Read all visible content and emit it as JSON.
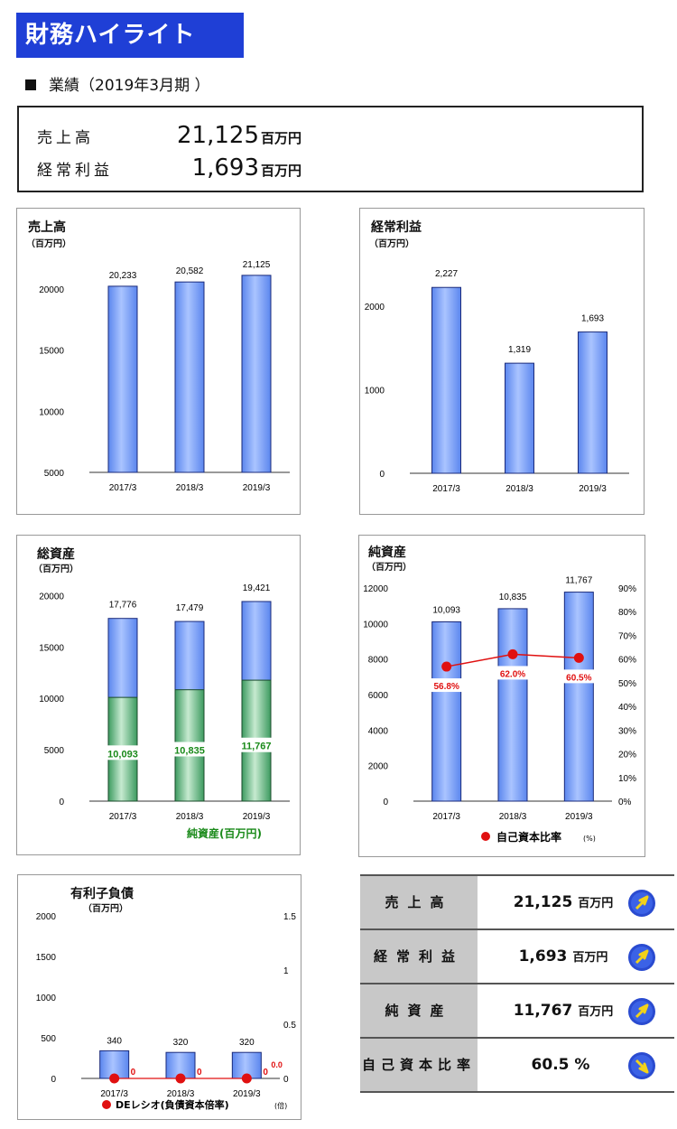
{
  "header": {
    "title": "財務ハイライト",
    "subtitle": "業績（2019年3月期 ）"
  },
  "summary": {
    "sales_label": "売上高",
    "sales_value": "21,125",
    "ordinary_label": "経常利益",
    "ordinary_value": "1,693",
    "unit": "百万円"
  },
  "colors": {
    "banner": "#1f3fd6",
    "bar_blue": "#5b86ee",
    "bar_green": "#3c9a5f",
    "ratio_marker": "#e01010",
    "label_green": "#1a8a1a",
    "label_red": "#e01010"
  },
  "chart_data": [
    {
      "id": "sales",
      "type": "bar",
      "title": "売上高",
      "unit": "（百万円）",
      "categories": [
        "2017/3",
        "2018/3",
        "2019/3"
      ],
      "values": [
        20233,
        20582,
        21125
      ],
      "value_labels": [
        "20,233",
        "20,582",
        "21,125"
      ],
      "ylim": [
        5000,
        22000
      ],
      "yticks": [
        5000,
        10000,
        15000,
        20000
      ]
    },
    {
      "id": "ordinary_profit",
      "type": "bar",
      "title": "経常利益",
      "unit": "（百万円）",
      "categories": [
        "2017/3",
        "2018/3",
        "2019/3"
      ],
      "values": [
        2227,
        1319,
        1693
      ],
      "value_labels": [
        "2,227",
        "1,319",
        "1,693"
      ],
      "ylim": [
        0,
        2500
      ],
      "yticks": [
        0,
        1000,
        2000
      ]
    },
    {
      "id": "total_assets",
      "type": "bar",
      "title": "総資産",
      "unit": "（百万円）",
      "categories": [
        "2017/3",
        "2018/3",
        "2019/3"
      ],
      "values": [
        17776,
        17479,
        19421
      ],
      "value_labels": [
        "17,776",
        "17,479",
        "19,421"
      ],
      "stack_values": [
        10093,
        10835,
        11767
      ],
      "stack_labels": [
        "10,093",
        "10,835",
        "11,767"
      ],
      "stack_legend": "純資産(百万円)",
      "ylim": [
        0,
        21000
      ],
      "yticks": [
        0,
        5000,
        10000,
        15000,
        20000
      ]
    },
    {
      "id": "net_assets",
      "type": "bar",
      "title": "純資産",
      "unit": "（百万円）",
      "categories": [
        "2017/3",
        "2018/3",
        "2019/3"
      ],
      "values": [
        10093,
        10835,
        11767
      ],
      "value_labels": [
        "10,093",
        "10,835",
        "11,767"
      ],
      "ylim": [
        0,
        12000
      ],
      "yticks": [
        0,
        2000,
        4000,
        6000,
        8000,
        10000,
        12000
      ],
      "y2lim": [
        0,
        90
      ],
      "y2ticks": [
        "0%",
        "10%",
        "20%",
        "30%",
        "40%",
        "50%",
        "60%",
        "70%",
        "80%",
        "90%"
      ],
      "ratio_values": [
        56.8,
        62.0,
        60.5
      ],
      "ratio_labels": [
        "56.8%",
        "62.0%",
        "60.5%"
      ],
      "ratio_legend": "自己資本比率",
      "ratio_legend_unit": "(%)"
    },
    {
      "id": "debt",
      "type": "bar",
      "title": "有利子負債",
      "unit": "（百万円）",
      "categories": [
        "2017/3",
        "2018/3",
        "2019/3"
      ],
      "values": [
        340,
        320,
        320
      ],
      "value_labels": [
        "340",
        "320",
        "320"
      ],
      "ylim": [
        0,
        2000
      ],
      "yticks": [
        0,
        500,
        1000,
        1500,
        2000
      ],
      "y2lim": [
        0,
        1.5
      ],
      "y2ticks": [
        "0",
        "0.5",
        "1",
        "1.5"
      ],
      "ratio_values": [
        0,
        0,
        0
      ],
      "ratio_labels": [
        "0",
        "0",
        "0"
      ],
      "ratio_extra_label": "0.0",
      "ratio_legend": "DEレシオ(負債資本倍率)",
      "ratio_legend_unit": "(倍)"
    }
  ],
  "table": [
    {
      "label": "売上高",
      "value": "21,125",
      "unit": "百万円"
    },
    {
      "label": "経常利益",
      "value": "1,693",
      "unit": "百万円"
    },
    {
      "label": "純資産",
      "value": "11,767",
      "unit": "百万円"
    },
    {
      "label": "自己資本比率",
      "value": "60.5 %",
      "unit": ""
    }
  ]
}
